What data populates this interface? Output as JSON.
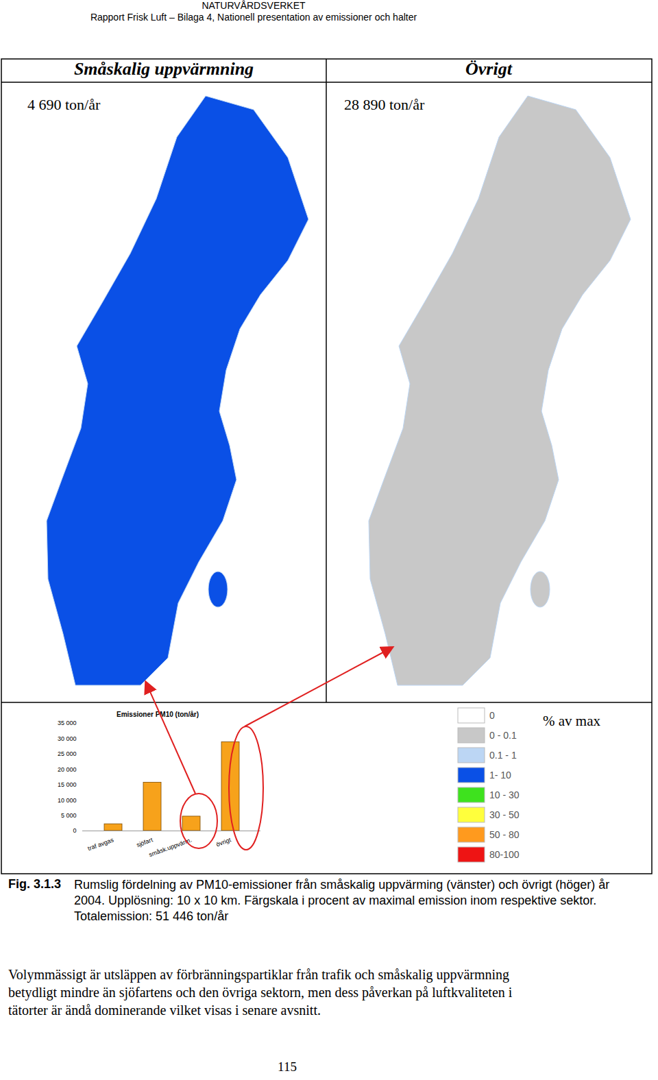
{
  "header": {
    "agency": "NATURVÅRDSVERKET",
    "report": "Rapport Frisk Luft – Bilaga 4, Nationell presentation av emissioner och halter"
  },
  "panels": [
    {
      "title": "Småskalig uppvärmning",
      "total": "4 690 ton/år"
    },
    {
      "title": "Övrigt",
      "total": "28 890 ton/år"
    }
  ],
  "chart_data": {
    "type": "bar",
    "title": "Emissioner PM10 (ton/år)",
    "categories": [
      "traf avgas",
      "sjöfart",
      "småsk.uppvärm.",
      "övrigt"
    ],
    "values": [
      2200,
      15700,
      4690,
      28890
    ],
    "color": "#f7a21b",
    "ylim": [
      0,
      35000
    ],
    "yticks": [
      0,
      {
        "value": 5000,
        "label": "5 000"
      },
      {
        "value": 10000,
        "label": "10 000"
      },
      {
        "value": 15000,
        "label": "15 000"
      },
      {
        "value": 20000,
        "label": "20 000"
      },
      {
        "value": 25000,
        "label": "25 000"
      },
      {
        "value": 30000,
        "label": "30 000"
      },
      {
        "value": 35000,
        "label": "35 000"
      }
    ],
    "grid": false
  },
  "legend": {
    "title": "% av max",
    "classes": [
      {
        "label": "0",
        "color": "#ffffff"
      },
      {
        "label": "0 - 0.1",
        "color": "#c8c8c8"
      },
      {
        "label": "0.1 - 1",
        "color": "#bcd6f4"
      },
      {
        "label": "1- 10",
        "color": "#0a50e6"
      },
      {
        "label": "10 - 30",
        "color": "#3ee21e"
      },
      {
        "label": "30 - 50",
        "color": "#ffff3c"
      },
      {
        "label": "50 - 80",
        "color": "#ff9a1e"
      },
      {
        "label": "80-100",
        "color": "#ee1414"
      }
    ]
  },
  "caption": {
    "label": "Fig. 3.1.3",
    "text": "Rumslig fördelning av PM10-emissioner från småskalig uppvärming (vänster) och övrigt (höger) år 2004.  Upplösning: 10 x 10 km.  Färgskala i procent av maximal emission inom respektive sektor.  Totalemission: 51 446 ton/år"
  },
  "body": "Volymmässigt är utsläppen av förbränningspartiklar från trafik och småskalig uppvärmning betydligt mindre än sjöfartens och den övriga sektorn, men dess påverkan på luftkvaliteten i tätorter är ändå dominerande vilket visas i senare avsnitt.",
  "page_number": "115"
}
